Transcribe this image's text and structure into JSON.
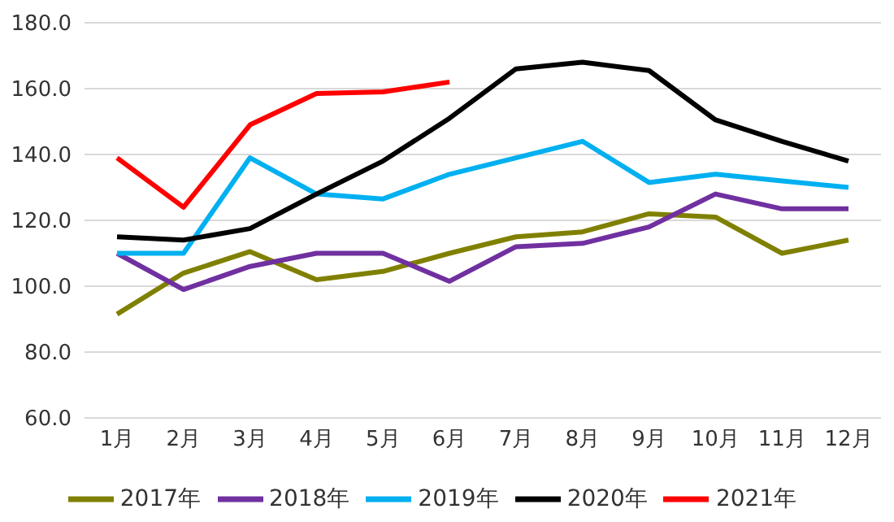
{
  "chart_data": {
    "type": "line",
    "categories": [
      "1月",
      "2月",
      "3月",
      "4月",
      "5月",
      "6月",
      "7月",
      "8月",
      "9月",
      "10月",
      "11月",
      "12月"
    ],
    "series": [
      {
        "name": "2017年",
        "color": "#808000",
        "values": [
          91.5,
          104,
          110.5,
          102,
          104.5,
          110,
          115,
          116.5,
          122,
          121,
          110,
          114
        ]
      },
      {
        "name": "2018年",
        "color": "#7030a0",
        "values": [
          110,
          99,
          106,
          110,
          110,
          101.5,
          112,
          113,
          118,
          128,
          123.5,
          123.5
        ]
      },
      {
        "name": "2019年",
        "color": "#00b0f0",
        "values": [
          110,
          110,
          139,
          128,
          126.5,
          134,
          139,
          144,
          131.5,
          134,
          132,
          130
        ]
      },
      {
        "name": "2020年",
        "color": "#000000",
        "values": [
          115,
          114,
          117.5,
          128,
          138,
          151,
          166,
          168,
          165.5,
          150.5,
          144,
          138
        ]
      },
      {
        "name": "2021年",
        "color": "#ff0000",
        "values": [
          139,
          124,
          149,
          158.5,
          159,
          162,
          null,
          null,
          null,
          null,
          null,
          null
        ]
      }
    ],
    "ylim": [
      60,
      180
    ],
    "yticks": [
      {
        "value": 60,
        "label": "60.0"
      },
      {
        "value": 80,
        "label": "80.0"
      },
      {
        "value": 100,
        "label": "100.0"
      },
      {
        "value": 120,
        "label": "120.0"
      },
      {
        "value": 140,
        "label": "140.0"
      },
      {
        "value": 160,
        "label": "160.0"
      },
      {
        "value": 180,
        "label": "180.0"
      }
    ],
    "grid": "y",
    "legend": "bottom",
    "marker": "none",
    "line_style": "solid"
  }
}
